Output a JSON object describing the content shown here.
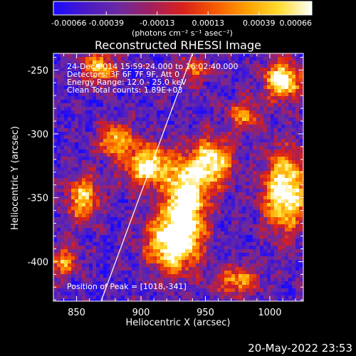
{
  "chart_data": {
    "type": "heatmap",
    "title": "Reconstructed RHESSI Image",
    "xlabel": "Heliocentric X (arcsec)",
    "ylabel": "Heliocentric Y (arcsec)",
    "xlim": [
      832,
      1026
    ],
    "ylim": [
      -431,
      -237
    ],
    "x_ticks": [
      850,
      900,
      950,
      1000
    ],
    "x_tick_labels": [
      "850",
      "900",
      "950",
      "1000"
    ],
    "y_ticks": [
      -250,
      -300,
      -350,
      -400
    ],
    "y_tick_labels": [
      "-250",
      "-300",
      "-350",
      "-400"
    ],
    "colorbar": {
      "range": [
        -0.00066,
        0.00066
      ],
      "ticks": [
        -0.00066,
        -0.00039,
        -0.00013,
        0.00013,
        0.00039,
        0.00066
      ],
      "tick_labels": [
        "-0.00066",
        "-0.00039",
        "-0.00013",
        "0.00013",
        "0.00039",
        "0.00066"
      ],
      "unit_label": "(photons cm⁻² s⁻¹ asec⁻²)",
      "colormap": "RHESSI color table 3 (black-blue-purple-red-orange-yellow-white)"
    },
    "annotations": [
      "24-Dec-2014 15:59:24.000 to 16:02:40.000",
      "Detectors: 3F 6F 7F 9F, Att 0",
      "Energy Range: 12.0 - 25.0 keV",
      "Clean      Total counts: 1.89E+03"
    ],
    "peak_label": "Position of Peak = [1018,-341]",
    "limb_line": {
      "from": [
        869,
        -431
      ],
      "to": [
        940,
        -237
      ]
    },
    "colors": {
      "background": "#000000",
      "foreground": "#ffffff",
      "scale": [
        "#1a0aff",
        "#4a1ac8",
        "#6a2aa0",
        "#a02060",
        "#d8201c",
        "#f65a00",
        "#ffa000",
        "#ffdd30",
        "#ffffff"
      ]
    },
    "bright_sources": [
      {
        "x": 925,
        "y": -385,
        "level": 1.0,
        "sx": 14,
        "sy": 16
      },
      {
        "x": 935,
        "y": -350,
        "level": 0.95,
        "sx": 11,
        "sy": 20
      },
      {
        "x": 955,
        "y": -322,
        "level": 0.85,
        "sx": 11,
        "sy": 13
      },
      {
        "x": 905,
        "y": -325,
        "level": 0.85,
        "sx": 13,
        "sy": 12
      },
      {
        "x": 880,
        "y": -305,
        "level": 0.7,
        "sx": 9,
        "sy": 9
      },
      {
        "x": 1012,
        "y": -345,
        "level": 0.95,
        "sx": 12,
        "sy": 22
      },
      {
        "x": 1010,
        "y": -258,
        "level": 0.95,
        "sx": 10,
        "sy": 10
      },
      {
        "x": 868,
        "y": -248,
        "level": 0.65,
        "sx": 9,
        "sy": 10
      },
      {
        "x": 855,
        "y": -350,
        "level": 0.7,
        "sx": 9,
        "sy": 13
      },
      {
        "x": 840,
        "y": -400,
        "level": 0.55,
        "sx": 8,
        "sy": 9
      },
      {
        "x": 975,
        "y": -415,
        "level": 0.6,
        "sx": 12,
        "sy": 8
      },
      {
        "x": 980,
        "y": -285,
        "level": 0.55,
        "sx": 9,
        "sy": 8
      },
      {
        "x": 940,
        "y": -250,
        "level": 0.45,
        "sx": 10,
        "sy": 8
      }
    ]
  },
  "footer": {
    "timestamp": "20-May-2022 23:53"
  }
}
